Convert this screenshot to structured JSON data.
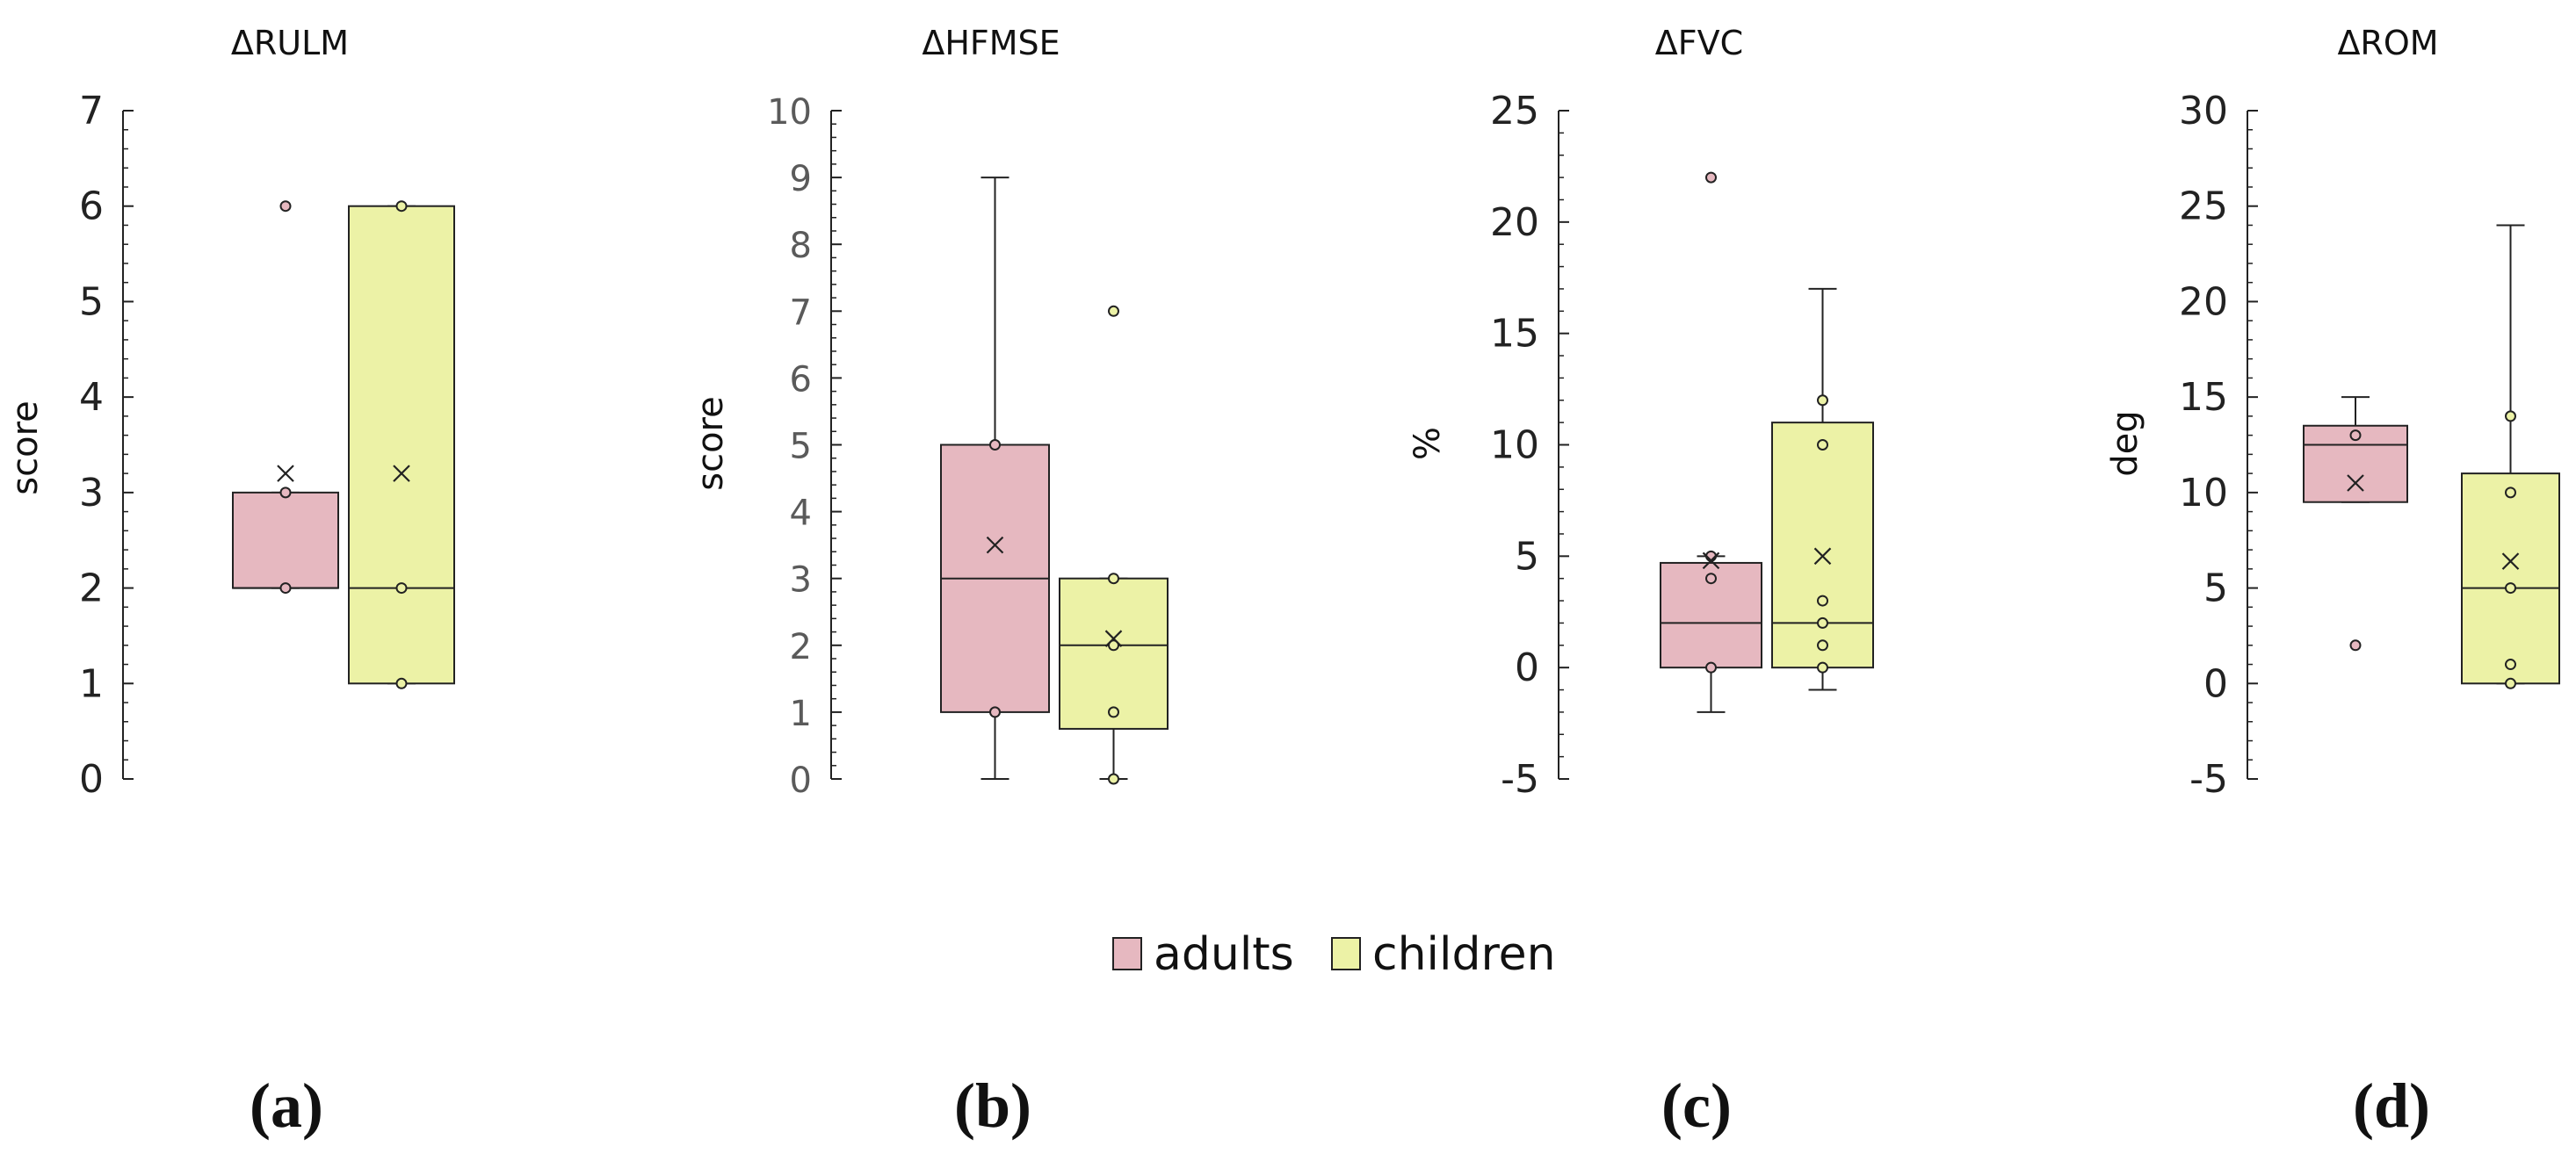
{
  "chart_data": [
    {
      "type": "box",
      "panel_label": "(a)",
      "title": "ΔRULM",
      "ylabel": "score",
      "ylim": [
        0,
        7
      ],
      "yticks": [
        0,
        1,
        2,
        3,
        4,
        5,
        6,
        7
      ],
      "groups": [
        {
          "name": "adults",
          "q1": 2,
          "median": 2,
          "q3": 3,
          "whisker_low": 2,
          "whisker_high": 3,
          "mean": 3.2,
          "points": [
            2,
            3,
            6
          ]
        },
        {
          "name": "children",
          "q1": 1,
          "median": 2,
          "q3": 6,
          "whisker_low": 1,
          "whisker_high": 6,
          "mean": 3.2,
          "points": [
            1,
            2,
            6
          ]
        }
      ]
    },
    {
      "type": "box",
      "panel_label": "(b)",
      "title": "ΔHFMSE",
      "ylabel": "score",
      "ylim": [
        0,
        10
      ],
      "yticks": [
        0,
        1,
        2,
        3,
        4,
        5,
        6,
        7,
        8,
        9,
        10
      ],
      "groups": [
        {
          "name": "adults",
          "q1": 1,
          "median": 3,
          "q3": 5,
          "whisker_low": 0,
          "whisker_high": 9,
          "mean": 3.5,
          "points": [
            1,
            5
          ]
        },
        {
          "name": "children",
          "q1": 0.75,
          "median": 2,
          "q3": 3,
          "whisker_low": 0,
          "whisker_high": 3,
          "mean": 2.1,
          "points": [
            0,
            1,
            2,
            3,
            7
          ]
        }
      ]
    },
    {
      "type": "box",
      "panel_label": "(c)",
      "title": "ΔFVC",
      "ylabel": "%",
      "ylim": [
        -5,
        25
      ],
      "yticks": [
        -5,
        0,
        5,
        10,
        15,
        20,
        25
      ],
      "groups": [
        {
          "name": "adults",
          "q1": 0,
          "median": 2,
          "q3": 4.7,
          "whisker_low": -2,
          "whisker_high": 5,
          "mean": 4.8,
          "points": [
            0,
            4,
            5,
            22
          ]
        },
        {
          "name": "children",
          "q1": 0,
          "median": 2,
          "q3": 11,
          "whisker_low": -1,
          "whisker_high": 17,
          "mean": 5,
          "points": [
            0,
            1,
            2,
            3,
            10,
            12
          ]
        }
      ]
    },
    {
      "type": "box",
      "panel_label": "(d)",
      "title": "ΔROM",
      "ylabel": "deg",
      "ylim": [
        -5,
        30
      ],
      "yticks": [
        -5,
        0,
        5,
        10,
        15,
        20,
        25,
        30
      ],
      "groups": [
        {
          "name": "adults",
          "q1": 9.5,
          "median": 12.5,
          "q3": 13.5,
          "whisker_low": 9.5,
          "whisker_high": 15,
          "mean": 10.5,
          "points": [
            2,
            13
          ]
        },
        {
          "name": "children",
          "q1": 0,
          "median": 5,
          "q3": 11,
          "whisker_low": 0,
          "whisker_high": 24,
          "mean": 6.4,
          "points": [
            0,
            1,
            5,
            10,
            14
          ]
        }
      ]
    }
  ],
  "legend": {
    "position": "bottom-center",
    "items": [
      {
        "label": "adults",
        "color": "#e6b8c0"
      },
      {
        "label": "children",
        "color": "#ecf2a6"
      }
    ]
  },
  "colors": {
    "adults": "#e6b8c0",
    "children": "#ecf2a6",
    "stroke": "#222222",
    "tick_text_dark": "#222222",
    "tick_text_grey": "#5a5a5a"
  }
}
